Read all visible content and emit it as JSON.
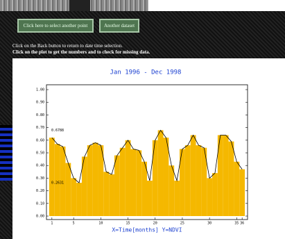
{
  "page": {
    "buttons": [
      "Click here to select another point",
      "Another dataset"
    ],
    "notes": [
      "Click on the Back button to return to date time selection.",
      "Click on the plot to get the numbers and to check for missing data."
    ]
  },
  "chart_data": {
    "type": "bar",
    "title": "Jan 1996 - Dec 1998",
    "x_label": "X=Time[months] Y=NDVI",
    "x": [
      1,
      2,
      3,
      4,
      5,
      6,
      7,
      8,
      9,
      10,
      11,
      12,
      13,
      14,
      15,
      16,
      17,
      18,
      19,
      20,
      21,
      22,
      23,
      24,
      25,
      26,
      27,
      28,
      29,
      30,
      31,
      32,
      33,
      34,
      35,
      36
    ],
    "values": [
      0.62,
      0.57,
      0.55,
      0.42,
      0.3,
      0.2631,
      0.47,
      0.56,
      0.58,
      0.56,
      0.35,
      0.33,
      0.48,
      0.54,
      0.6,
      0.53,
      0.52,
      0.43,
      0.28,
      0.6,
      0.6788,
      0.62,
      0.4,
      0.28,
      0.53,
      0.56,
      0.64,
      0.56,
      0.54,
      0.3,
      0.34,
      0.64,
      0.64,
      0.59,
      0.43,
      0.37
    ],
    "color": "#f5b800",
    "line_color": "#000000",
    "xlim": [
      0,
      37
    ],
    "xticks": [
      1,
      5,
      10,
      15,
      20,
      25,
      30,
      35,
      36
    ],
    "ylim": [
      0,
      1
    ],
    "yticks": [
      {
        "value": 0,
        "label": "0.00"
      },
      {
        "value": 0.1,
        "label": "0.10"
      },
      {
        "value": 0.2,
        "label": "0.20"
      },
      {
        "value": 0.3,
        "label": "0.30"
      },
      {
        "value": 0.4,
        "label": "0.40"
      },
      {
        "value": 0.5,
        "label": "0.50"
      },
      {
        "value": 0.6,
        "label": "0.60"
      },
      {
        "value": 0.7,
        "label": "0.70"
      },
      {
        "value": 0.8,
        "label": "0.80"
      },
      {
        "value": 0.9,
        "label": "0.90"
      },
      {
        "value": 1,
        "label": "1.00"
      }
    ],
    "annotations": [
      0.6788,
      0.2631
    ]
  }
}
